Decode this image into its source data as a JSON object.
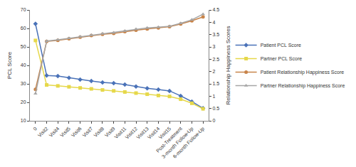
{
  "chart_data": {
    "type": "line",
    "y_label": "PCL Score",
    "y2_label": "Relationship Happiness Scores",
    "categories": [
      "0",
      "Visit2",
      "Visit4",
      "Visit5",
      "Visit6",
      "Visit7",
      "Visit8",
      "Visit9",
      "Visit11",
      "Visit12",
      "Visit13",
      "Visit14",
      "Visit15",
      "Post-Treatment",
      "3-month Follow-Up",
      "6-month Follow-Up"
    ],
    "series": [
      {
        "name": "Patient PCL Score",
        "color": "#4a72b8",
        "marker": "diamond",
        "line_style": "solid",
        "values": [
          62.5,
          34.5,
          34.2,
          33.3,
          32.3,
          31.5,
          30.8,
          30.4,
          29.6,
          28.6,
          27.6,
          26.9,
          26.2,
          23.5,
          20.4,
          16.8
        ]
      },
      {
        "name": "Partner PCL Score",
        "color": "#e6d84a",
        "marker": "square",
        "line_style": "solid",
        "values": [
          53.5,
          29.4,
          28.9,
          28.4,
          27.8,
          27.3,
          26.7,
          26.2,
          25.6,
          25.0,
          24.4,
          23.7,
          23.2,
          21.7,
          19.5,
          16.5
        ]
      },
      {
        "name": "Patient Relationship Happiness Score",
        "color": "#c8844a",
        "marker": "circle",
        "line_style": "solid",
        "axis": "y2",
        "values": [
          1.28,
          3.22,
          3.27,
          3.33,
          3.4,
          3.46,
          3.51,
          3.55,
          3.62,
          3.68,
          3.73,
          3.77,
          3.82,
          3.93,
          4.06,
          4.22
        ]
      },
      {
        "name": "Partner Relationship Happiness Score",
        "color": "#a6a6a6",
        "marker": "triangle",
        "line_style": "solid",
        "axis": "y2",
        "values": [
          1.1,
          3.24,
          3.29,
          3.35,
          3.42,
          3.48,
          3.54,
          3.58,
          3.65,
          3.72,
          3.77,
          3.8,
          3.84,
          3.96,
          4.1,
          4.33
        ]
      }
    ],
    "ylim": [
      10,
      70
    ],
    "yticks": [
      10,
      20,
      30,
      40,
      50,
      60,
      70
    ],
    "y2lim": [
      0,
      4.5
    ],
    "y2ticks": [
      0,
      0.5,
      1,
      1.5,
      2,
      2.5,
      3,
      3.5,
      4,
      4.5
    ],
    "grid": false,
    "legend": "right"
  }
}
